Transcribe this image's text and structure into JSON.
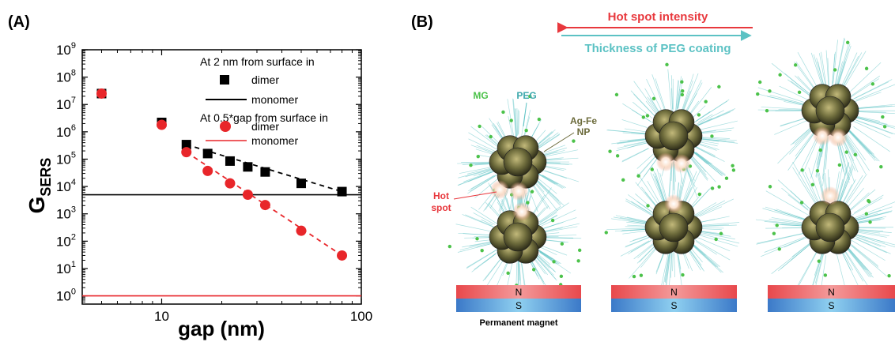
{
  "panel_a": {
    "label": "(A)",
    "chart_data": {
      "type": "scatter",
      "xscale": "log",
      "yscale": "log",
      "xlim": [
        4,
        100
      ],
      "ylim": [
        0.5,
        1000000000
      ],
      "xticks": [
        10,
        100
      ],
      "xtick_labels": [
        "10",
        "100"
      ],
      "yticks": [
        1,
        10,
        100,
        1000,
        10000,
        100000,
        1000000,
        10000000,
        100000000,
        1000000000
      ],
      "ytick_exponents": [
        "0",
        "1",
        "2",
        "3",
        "4",
        "5",
        "6",
        "7",
        "8",
        "9"
      ],
      "ytick_base": "10",
      "xlabel": "gap (nm)",
      "ylabel": "G",
      "ylabel_sub": "SERS",
      "legend": {
        "group1_title": "At 2 nm from surface in",
        "group2_title": "At 0.5*gap from surface in",
        "placement": "top-right"
      },
      "series": [
        {
          "name": "dimer",
          "group": "At 2 nm from surface in",
          "marker": "square",
          "color": "#000000",
          "x": [
            5,
            10,
            13.3,
            17,
            22,
            27,
            33,
            50,
            80
          ],
          "y": [
            25000000,
            2200000,
            340000,
            160000,
            85000,
            52000,
            34000,
            13000,
            6500
          ]
        },
        {
          "name": "monomer",
          "group": "At 2 nm from surface in",
          "marker": "line",
          "color": "#000000",
          "x": [
            4,
            100
          ],
          "y": [
            5000,
            5000
          ]
        },
        {
          "name": "dimer",
          "group": "At 0.5*gap from surface in",
          "marker": "circle",
          "color": "#e8262a",
          "x": [
            5,
            10,
            13.3,
            17,
            22,
            27,
            33,
            50,
            80
          ],
          "y": [
            25000000,
            1800000,
            180000,
            37000,
            13000,
            5000,
            2100,
            240,
            30
          ]
        },
        {
          "name": "monomer",
          "group": "At 0.5*gap from surface in",
          "marker": "line",
          "color": "#e8262a",
          "x": [
            4,
            100
          ],
          "y": [
            1,
            1
          ]
        }
      ],
      "fit_lines": [
        {
          "color": "#000000",
          "x": [
            13.3,
            80
          ],
          "y": [
            340000,
            6500
          ]
        },
        {
          "color": "#e8262a",
          "x": [
            13.3,
            80
          ],
          "y": [
            180000,
            30
          ]
        }
      ]
    }
  },
  "panel_b": {
    "label": "(B)",
    "arrow_top_label": "Hot spot intensity",
    "arrow_bottom_label": "Thickness of PEG coating",
    "mg_label": "MG",
    "peg_label": "PEG",
    "np_label_line1": "Ag-Fe",
    "np_label_line2": "NP",
    "hotspot_line1": "Hot",
    "hotspot_line2": "spot",
    "magnet_n": "N",
    "magnet_s": "S",
    "magnet_caption": "Permanent magnet",
    "colors": {
      "red": "#e8383d",
      "cyan": "#5cc2c4",
      "green": "#4cc24a",
      "olive": "#6b6a3a",
      "magnet_red": "#e8484c",
      "magnet_blue": "#3b8fd1"
    }
  }
}
